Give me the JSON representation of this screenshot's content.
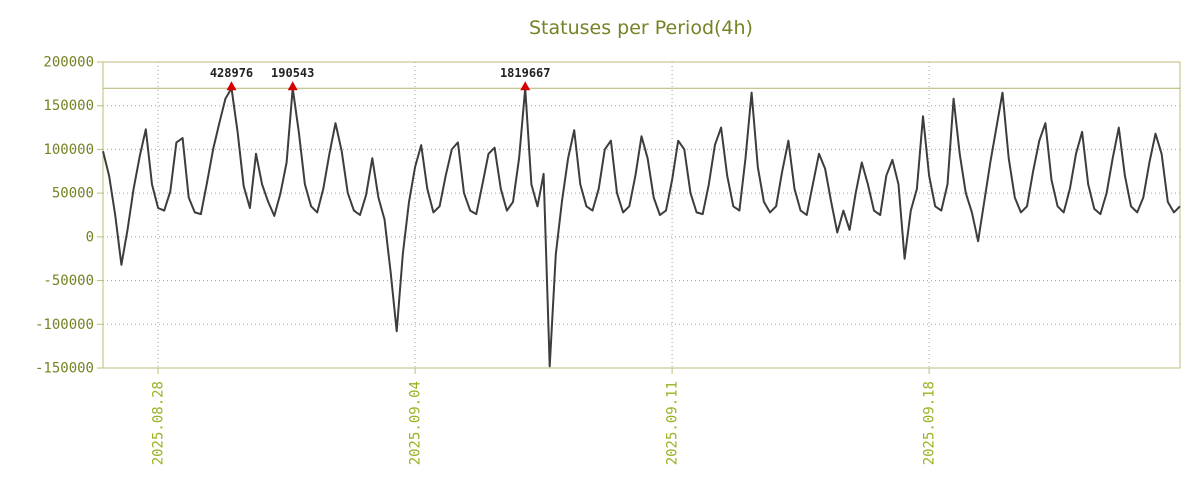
{
  "colors": {
    "title": "#768224",
    "y_axis_label": "#768224",
    "x_axis_label": "#9cb020",
    "border": "#bdbe7f",
    "grid": "#a0a0a0",
    "line": "#3d3d3d",
    "threshold_line": "#b3b36b",
    "marker": "#d40000",
    "annotation_text": "#222222",
    "background": "#ffffff"
  },
  "chart_data": {
    "type": "line",
    "title": "Statuses per Period(4h)",
    "x_start": "2025-08-26 12:00",
    "x_step_hours": 4,
    "ylim": [
      -150000,
      200000
    ],
    "clip_value": 170000,
    "grid": "dotted",
    "legend": "none",
    "y_ticks": [
      {
        "value": 200000,
        "label": "200000"
      },
      {
        "value": 150000,
        "label": "150000"
      },
      {
        "value": 100000,
        "label": "100000"
      },
      {
        "value": 50000,
        "label": "50000"
      },
      {
        "value": 0,
        "label": "0"
      },
      {
        "value": -50000,
        "label": "-50000"
      },
      {
        "value": -100000,
        "label": "-100000"
      },
      {
        "value": -150000,
        "label": "-150000"
      }
    ],
    "x_ticks": [
      {
        "index": 9,
        "label": "2025.08.28"
      },
      {
        "index": 51,
        "label": "2025.09.04"
      },
      {
        "index": 93,
        "label": "2025.09.11"
      },
      {
        "index": 135,
        "label": "2025.09.18"
      }
    ],
    "annotations": [
      {
        "index": 21,
        "label": "428976",
        "value": 428976
      },
      {
        "index": 31,
        "label": "190543",
        "value": 190543
      },
      {
        "index": 69,
        "label": "1819667",
        "value": 1819667
      }
    ],
    "values": [
      98000,
      70000,
      25000,
      -32000,
      8000,
      55000,
      92000,
      123000,
      60000,
      33000,
      30000,
      52000,
      108000,
      113000,
      45000,
      28000,
      26000,
      62000,
      100000,
      130000,
      158000,
      428976,
      120000,
      58000,
      33000,
      95000,
      60000,
      40000,
      24000,
      50000,
      85000,
      190543,
      120000,
      60000,
      35000,
      28000,
      55000,
      95000,
      130000,
      98000,
      50000,
      30000,
      25000,
      48000,
      90000,
      45000,
      20000,
      -40000,
      -108000,
      -20000,
      40000,
      80000,
      105000,
      55000,
      28000,
      35000,
      70000,
      100000,
      108000,
      50000,
      30000,
      26000,
      60000,
      95000,
      102000,
      55000,
      30000,
      40000,
      90000,
      1819667,
      60000,
      35000,
      72000,
      -148000,
      -20000,
      40000,
      90000,
      122000,
      60000,
      35000,
      30000,
      55000,
      100000,
      110000,
      50000,
      28000,
      35000,
      70000,
      115000,
      90000,
      45000,
      25000,
      30000,
      65000,
      110000,
      100000,
      50000,
      28000,
      26000,
      60000,
      105000,
      125000,
      70000,
      35000,
      30000,
      90000,
      165000,
      80000,
      40000,
      28000,
      35000,
      75000,
      110000,
      55000,
      30000,
      25000,
      60000,
      95000,
      78000,
      40000,
      5000,
      30000,
      8000,
      50000,
      85000,
      60000,
      30000,
      25000,
      70000,
      88000,
      60000,
      -25000,
      30000,
      55000,
      138000,
      70000,
      35000,
      30000,
      60000,
      158000,
      95000,
      50000,
      28000,
      -5000,
      40000,
      85000,
      125000,
      165000,
      90000,
      45000,
      28000,
      35000,
      75000,
      110000,
      130000,
      65000,
      35000,
      28000,
      55000,
      95000,
      120000,
      60000,
      32000,
      26000,
      50000,
      90000,
      125000,
      70000,
      35000,
      28000,
      45000,
      85000,
      118000,
      95000,
      40000,
      28000,
      35000
    ]
  }
}
